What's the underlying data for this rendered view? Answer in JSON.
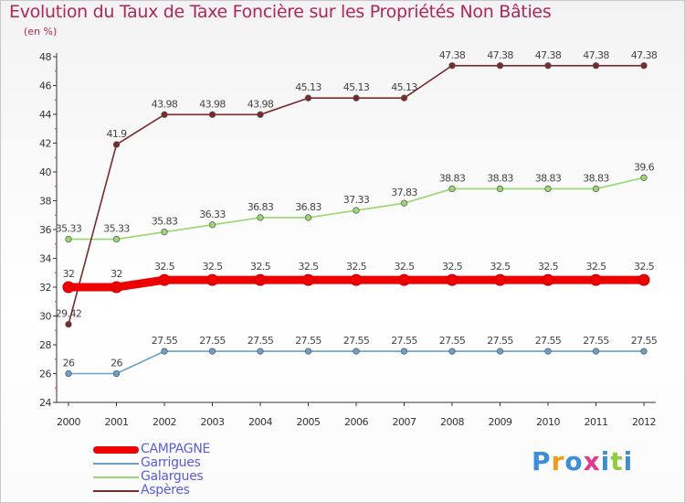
{
  "chart_data": {
    "type": "line",
    "title": "Evolution du Taux de Taxe Foncière sur les Propriétés Non Bâties",
    "ylabel": "(en %)",
    "xlabel": "",
    "ylim": [
      24,
      48
    ],
    "yticks": [
      24,
      26,
      28,
      30,
      32,
      34,
      36,
      38,
      40,
      42,
      44,
      46,
      48
    ],
    "categories": [
      "2000",
      "2001",
      "2002",
      "2003",
      "2004",
      "2005",
      "2006",
      "2007",
      "2008",
      "2009",
      "2010",
      "2011",
      "2012"
    ],
    "series": [
      {
        "name": "CAMPAGNE",
        "color": "#ee0000",
        "bold": true,
        "values": [
          32,
          32,
          32.5,
          32.5,
          32.5,
          32.5,
          32.5,
          32.5,
          32.5,
          32.5,
          32.5,
          32.5,
          32.5
        ],
        "labels": [
          "32",
          "32",
          "32.5",
          "32.5",
          "32.5",
          "32.5",
          "32.5",
          "32.5",
          "32.5",
          "32.5",
          "32.5",
          "32.5",
          "32.5"
        ]
      },
      {
        "name": "Garrigues",
        "color": "#6aa0cc",
        "bold": false,
        "values": [
          26,
          26,
          27.55,
          27.55,
          27.55,
          27.55,
          27.55,
          27.55,
          27.55,
          27.55,
          27.55,
          27.55,
          27.55
        ],
        "labels": [
          "26",
          "26",
          "27.55",
          "27.55",
          "27.55",
          "27.55",
          "27.55",
          "27.55",
          "27.55",
          "27.55",
          "27.55",
          "27.55",
          "27.55"
        ]
      },
      {
        "name": "Galargues",
        "color": "#98d870",
        "bold": false,
        "values": [
          35.33,
          35.33,
          35.83,
          36.33,
          36.83,
          36.83,
          37.33,
          37.83,
          38.83,
          38.83,
          38.83,
          38.83,
          39.6
        ],
        "labels": [
          "35.33",
          "35.33",
          "35.83",
          "36.33",
          "36.83",
          "36.83",
          "37.33",
          "37.83",
          "38.83",
          "38.83",
          "38.83",
          "38.83",
          "39.6"
        ]
      },
      {
        "name": "Aspères",
        "color": "#7a2a2a",
        "bold": false,
        "values": [
          29.42,
          41.9,
          43.98,
          43.98,
          43.98,
          45.13,
          45.13,
          45.13,
          47.38,
          47.38,
          47.38,
          47.38,
          47.38
        ],
        "labels": [
          "29.42",
          "41.9",
          "43.98",
          "43.98",
          "43.98",
          "45.13",
          "45.13",
          "45.13",
          "47.38",
          "47.38",
          "47.38",
          "47.38",
          "47.38"
        ]
      }
    ]
  },
  "logo": {
    "text": "Proxiti"
  }
}
